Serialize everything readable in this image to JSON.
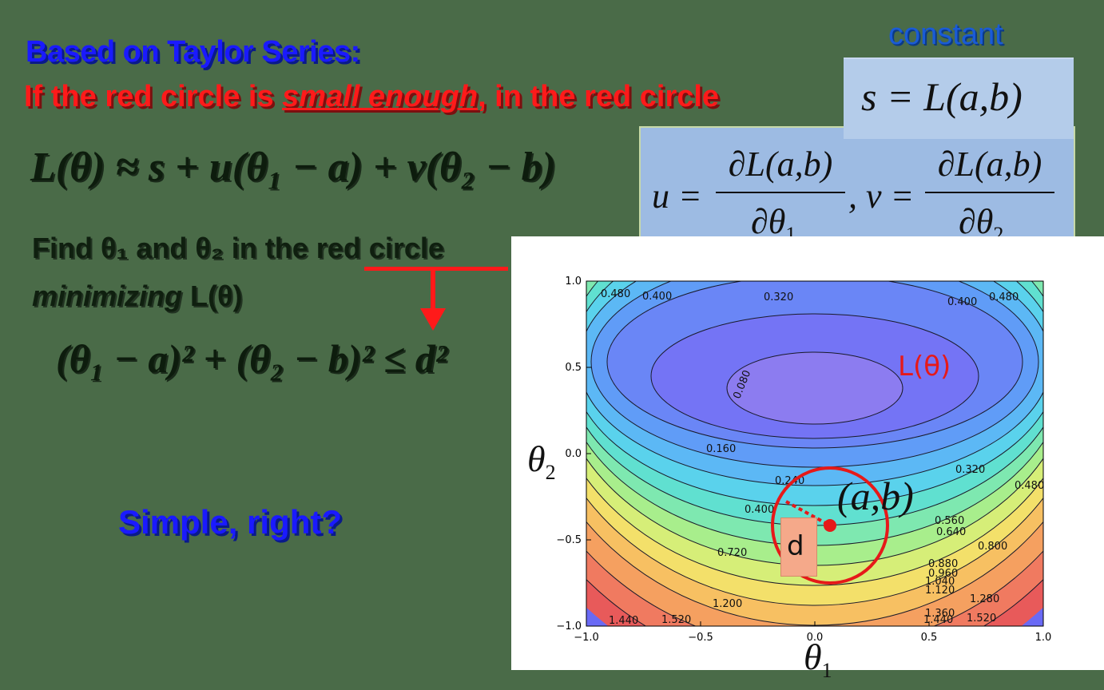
{
  "heading": {
    "line1": "Based on Taylor Series:",
    "line2_prefix": "If the red circle is ",
    "line2_emph": "small enough",
    "line2_suffix": ", in the red circle"
  },
  "constant_label": "constant",
  "eq_s": "s = L(a,b)",
  "eq_uv": {
    "u_lhs": "u =",
    "u_num": "∂L(a,b)",
    "u_den": "∂θ",
    "u_den_sub": "1",
    "sep": ", v =",
    "v_num": "∂L(a,b)",
    "v_den": "∂θ",
    "v_den_sub": "2"
  },
  "eq_taylor": "L(θ) ≈ s + u(θ₁ − a) + v(θ₂ − b)",
  "find": {
    "line1": "Find θ₁ and θ₂ in the red circle",
    "line2_italic": "minimizing",
    "line2_rest": " L(θ)"
  },
  "constraint": "(θ₁ − a)² + (θ₂ − b)² ≤ d²",
  "simple": "Simple, right?",
  "plot": {
    "loss_label": "L(θ)",
    "point_label": "(a,b)",
    "radius_label": "d",
    "x_axis_label": "θ",
    "x_axis_sub": "1",
    "y_axis_label": "θ",
    "y_axis_sub": "2",
    "x_ticks": [
      "−1.0",
      "−0.5",
      "0.0",
      "0.5",
      "1.0"
    ],
    "y_ticks": [
      "1.0",
      "0.5",
      "0.0",
      "−0.5",
      "−1.0"
    ],
    "contour_labels": [
      "0.480",
      "0.400",
      "0.320",
      "0.400",
      "0.480",
      "0.080",
      "0.160",
      "0.240",
      "0.320",
      "0.480",
      "0.400",
      "0.560",
      "0.640",
      "0.720",
      "0.800",
      "0.880",
      "0.960",
      "1.040",
      "1.120",
      "1.200",
      "1.280",
      "1.360",
      "1.440",
      "1.520",
      "1.440",
      "1.520"
    ],
    "colors": {
      "circle": "#e61919",
      "d_box": "#f5a98a"
    }
  }
}
